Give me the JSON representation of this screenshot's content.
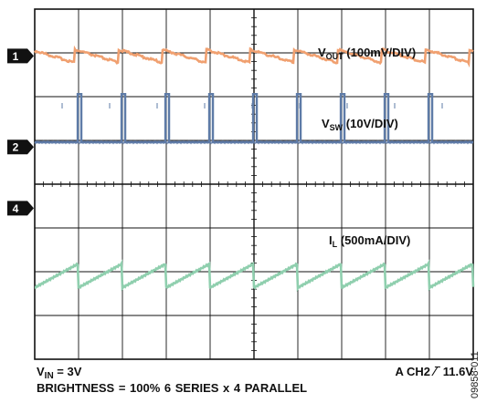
{
  "chart_data": {
    "type": "line",
    "title": "",
    "xlabel": "",
    "ylabel": "",
    "grid": true,
    "x_divisions": 10,
    "y_divisions": 8,
    "switching_periods_shown": 10,
    "series": [
      {
        "name": "VOUT (100mV/DIV)",
        "channel": "1",
        "color": "#F0A070",
        "waveform": "sawtooth",
        "ripple_divisions": 0.3
      },
      {
        "name": "VSW (10V/DIV)",
        "channel": "2",
        "color": "#5E7BA7",
        "waveform": "pulse",
        "pulse_height_divisions": 1.1
      },
      {
        "name": "IL (500mA/DIV)",
        "channel": "",
        "color": "#8FCFAE",
        "waveform": "sawtooth",
        "ripple_divisions": 0.55
      }
    ],
    "marker_labels": [
      "1",
      "2",
      "4"
    ]
  },
  "labels": {
    "vout_main": "V",
    "vout_sub": "OUT",
    "vout_rest": " (100mV/DIV)",
    "vsw_main": "V",
    "vsw_sub": "SW",
    "vsw_rest": " (10V/DIV)",
    "il_main": "I",
    "il_sub": "L",
    "il_rest": " (500mA/DIV)"
  },
  "footer": {
    "vin_main": "V",
    "vin_sub": "IN",
    "vin_rest": " = 3V",
    "trigger": "A  CH2  ∕‾ 11.6V",
    "line2": "BRIGHTNESS = 100%    6 SERIES x 4 PARALLEL",
    "code": "09858-011"
  }
}
